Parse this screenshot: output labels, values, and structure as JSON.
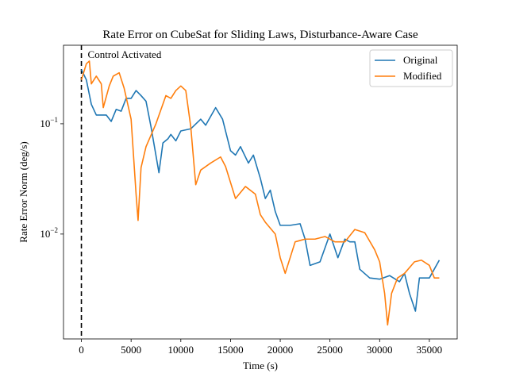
{
  "chart_data": {
    "type": "line",
    "title": "Rate Error on CubeSat for Sliding Laws, Disturbance-Aware Case",
    "x_label": "Time (s)",
    "y_label": "Rate Error Norm (deg/s)",
    "log_y": true,
    "legend": "upper right",
    "annotation": {
      "text": "Control Activated",
      "x": 0
    },
    "xlim": [
      -1800,
      37800
    ],
    "xticks": [
      0,
      5000,
      10000,
      15000,
      20000,
      25000,
      30000,
      35000
    ],
    "ylim": [
      0.00112,
      0.515
    ],
    "yticks": [
      {
        "value": 0.01,
        "label": "10^-2"
      },
      {
        "value": 0.1,
        "label": "10^-1"
      }
    ],
    "series": [
      {
        "name": "Original",
        "color": "#1f77b4",
        "x": [
          0,
          500,
          1000,
          1500,
          2500,
          3000,
          3500,
          4000,
          4500,
          5000,
          5500,
          6000,
          6500,
          7000,
          7800,
          8200,
          8700,
          9000,
          9500,
          10000,
          11000,
          12000,
          12500,
          13500,
          14200,
          15000,
          15500,
          16000,
          16800,
          17300,
          18000,
          18500,
          19000,
          19500,
          20000,
          21000,
          22000,
          22500,
          23000,
          24000,
          25000,
          25800,
          26500,
          27000,
          27500,
          28000,
          29000,
          30000,
          31000,
          32000,
          32500,
          33000,
          33600,
          34000,
          35000,
          36000
        ],
        "values": [
          0.31,
          0.25,
          0.15,
          0.12,
          0.12,
          0.105,
          0.135,
          0.13,
          0.17,
          0.17,
          0.2,
          0.18,
          0.16,
          0.094,
          0.036,
          0.067,
          0.073,
          0.08,
          0.07,
          0.086,
          0.09,
          0.11,
          0.097,
          0.14,
          0.11,
          0.057,
          0.052,
          0.062,
          0.044,
          0.052,
          0.032,
          0.021,
          0.025,
          0.016,
          0.012,
          0.012,
          0.0124,
          0.009,
          0.0052,
          0.0056,
          0.01,
          0.0061,
          0.009,
          0.0085,
          0.0085,
          0.0048,
          0.004,
          0.0039,
          0.0042,
          0.0037,
          0.0044,
          0.0029,
          0.002,
          0.004,
          0.004,
          0.0058
        ]
      },
      {
        "name": "Modified",
        "color": "#ff7f0e",
        "x": [
          0,
          500,
          800,
          1000,
          1500,
          2000,
          2200,
          2800,
          3200,
          3800,
          4300,
          5000,
          5500,
          5700,
          6000,
          6500,
          7500,
          8500,
          9000,
          9500,
          10000,
          10500,
          11000,
          11500,
          12000,
          13000,
          14000,
          14500,
          15500,
          16500,
          17500,
          18000,
          18500,
          19500,
          20000,
          20500,
          21500,
          22500,
          23500,
          24500,
          25500,
          26500,
          27500,
          28500,
          29500,
          30000,
          30500,
          30800,
          31200,
          31800,
          32500,
          33500,
          34200,
          35000,
          35500,
          36000
        ],
        "values": [
          0.25,
          0.35,
          0.37,
          0.23,
          0.27,
          0.23,
          0.14,
          0.22,
          0.27,
          0.29,
          0.21,
          0.11,
          0.023,
          0.0133,
          0.04,
          0.062,
          0.1,
          0.18,
          0.17,
          0.2,
          0.22,
          0.2,
          0.094,
          0.028,
          0.038,
          0.044,
          0.05,
          0.041,
          0.021,
          0.027,
          0.023,
          0.015,
          0.0128,
          0.01,
          0.0061,
          0.0044,
          0.0085,
          0.009,
          0.009,
          0.0095,
          0.0085,
          0.0085,
          0.011,
          0.0103,
          0.0072,
          0.0056,
          0.0029,
          0.0015,
          0.0029,
          0.004,
          0.0044,
          0.0056,
          0.0058,
          0.0052,
          0.004,
          0.004
        ]
      }
    ]
  }
}
